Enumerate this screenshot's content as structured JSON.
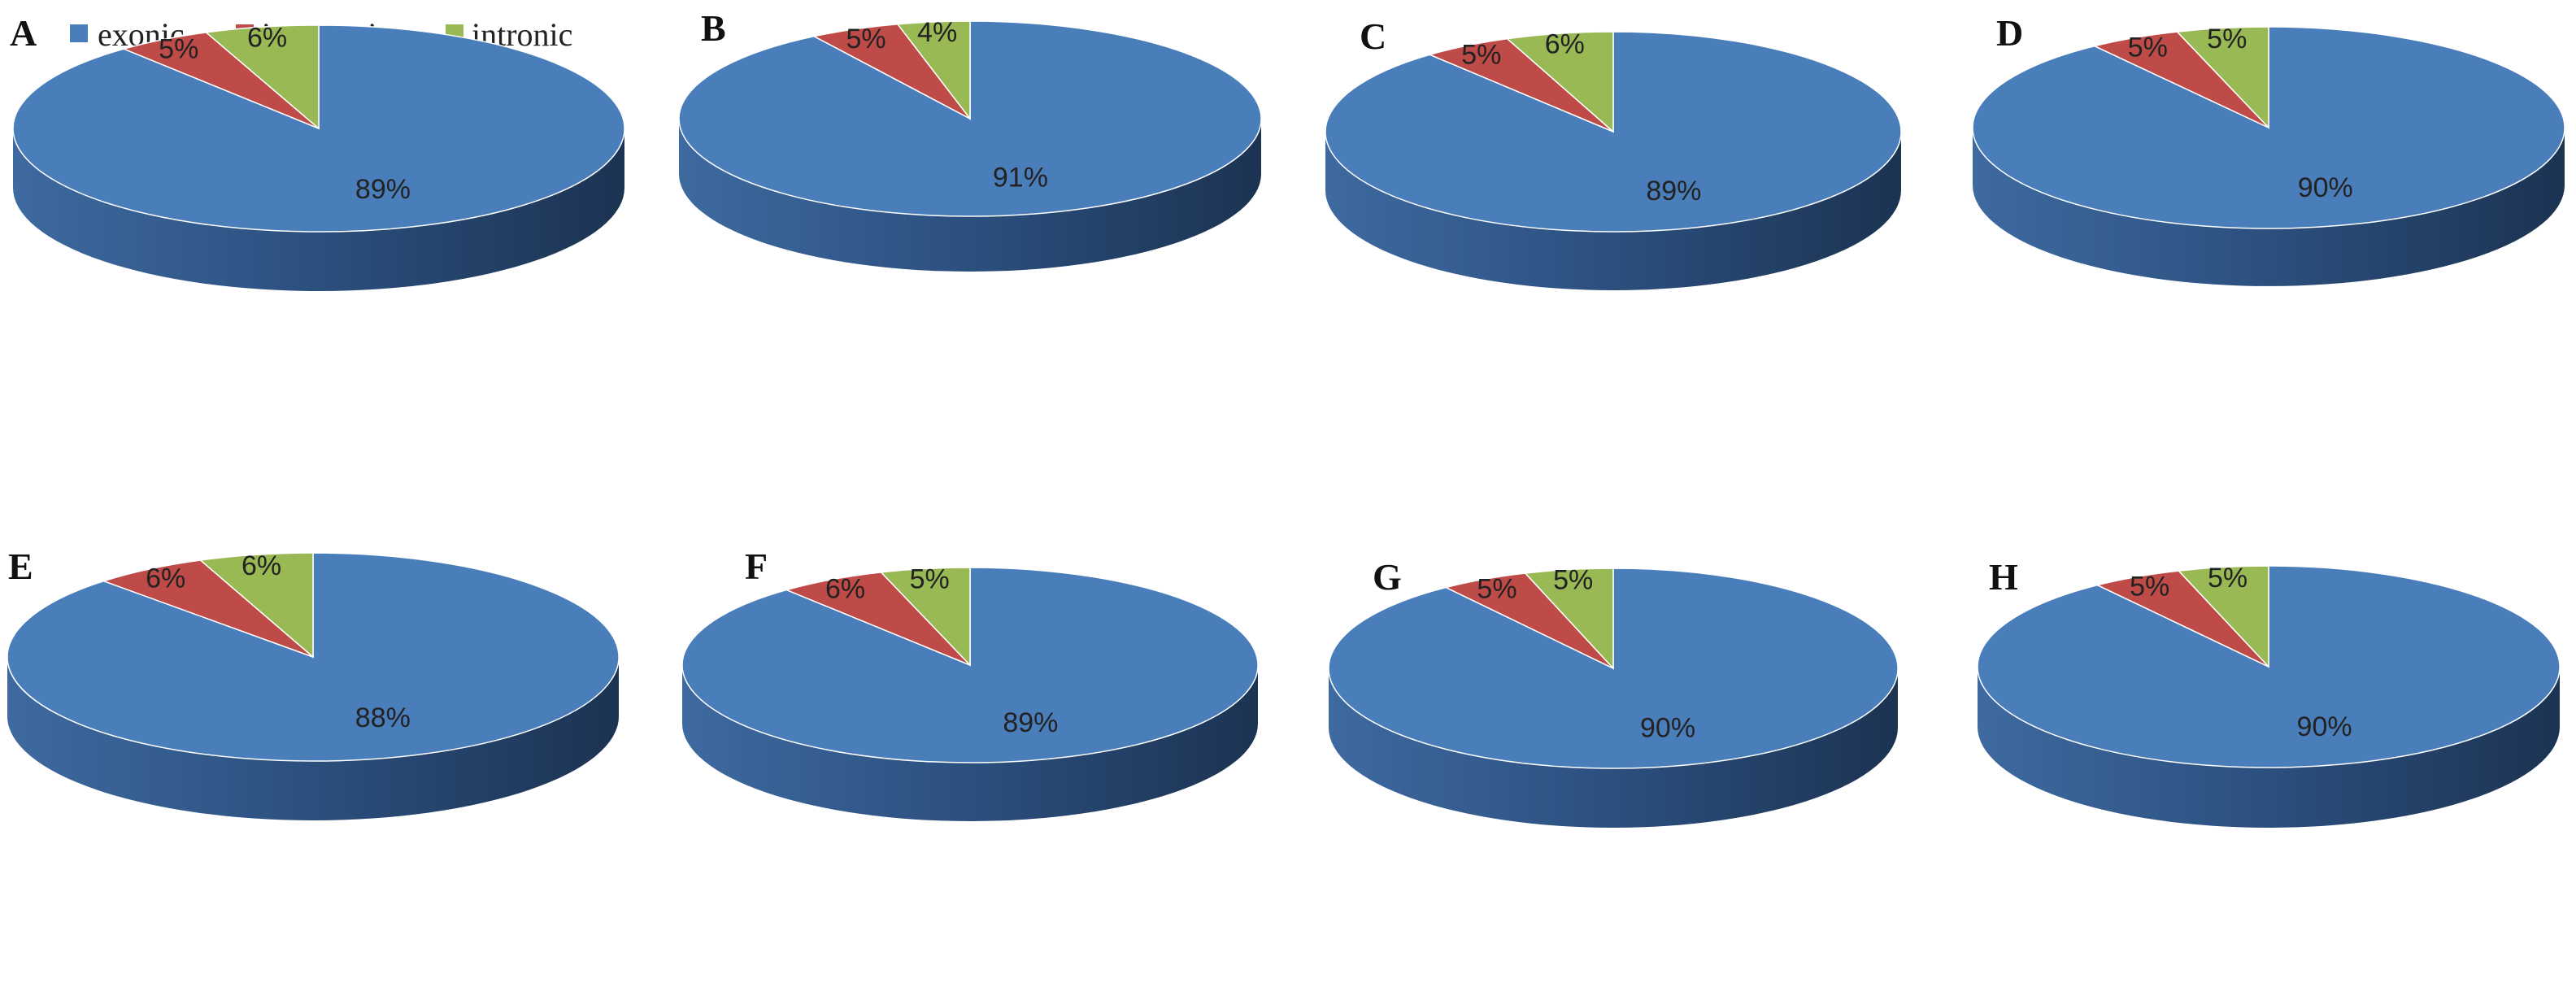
{
  "legend": {
    "items": [
      {
        "label": "exonic",
        "color": "#4a7ebb"
      },
      {
        "label": "intergenic",
        "color": "#be4b48"
      },
      {
        "label": "intronic",
        "color": "#98b954"
      }
    ]
  },
  "chart_data": [
    {
      "type": "pie",
      "panel": "A",
      "categories": [
        "exonic",
        "intergenic",
        "intronic"
      ],
      "values": [
        89,
        5,
        6
      ],
      "labels": [
        "89%",
        "5%",
        "6%"
      ]
    },
    {
      "type": "pie",
      "panel": "B",
      "categories": [
        "exonic",
        "intergenic",
        "intronic"
      ],
      "values": [
        91,
        5,
        4
      ],
      "labels": [
        "91%",
        "5%",
        "4%"
      ]
    },
    {
      "type": "pie",
      "panel": "C",
      "categories": [
        "exonic",
        "intergenic",
        "intronic"
      ],
      "values": [
        89,
        5,
        6
      ],
      "labels": [
        "89%",
        "5%",
        "6%"
      ]
    },
    {
      "type": "pie",
      "panel": "D",
      "categories": [
        "exonic",
        "intergenic",
        "intronic"
      ],
      "values": [
        90,
        5,
        5
      ],
      "labels": [
        "90%",
        "5%",
        "5%"
      ]
    },
    {
      "type": "pie",
      "panel": "E",
      "categories": [
        "exonic",
        "intergenic",
        "intronic"
      ],
      "values": [
        88,
        6,
        6
      ],
      "labels": [
        "88%",
        "6%",
        "6%"
      ]
    },
    {
      "type": "pie",
      "panel": "F",
      "categories": [
        "exonic",
        "intergenic",
        "intronic"
      ],
      "values": [
        89,
        6,
        5
      ],
      "labels": [
        "89%",
        "6%",
        "5%"
      ]
    },
    {
      "type": "pie",
      "panel": "G",
      "categories": [
        "exonic",
        "intergenic",
        "intronic"
      ],
      "values": [
        90,
        5,
        5
      ],
      "labels": [
        "90%",
        "5%",
        "5%"
      ]
    },
    {
      "type": "pie",
      "panel": "H",
      "categories": [
        "exonic",
        "intergenic",
        "intronic"
      ],
      "values": [
        90,
        5,
        5
      ],
      "labels": [
        "90%",
        "5%",
        "5%"
      ]
    }
  ]
}
